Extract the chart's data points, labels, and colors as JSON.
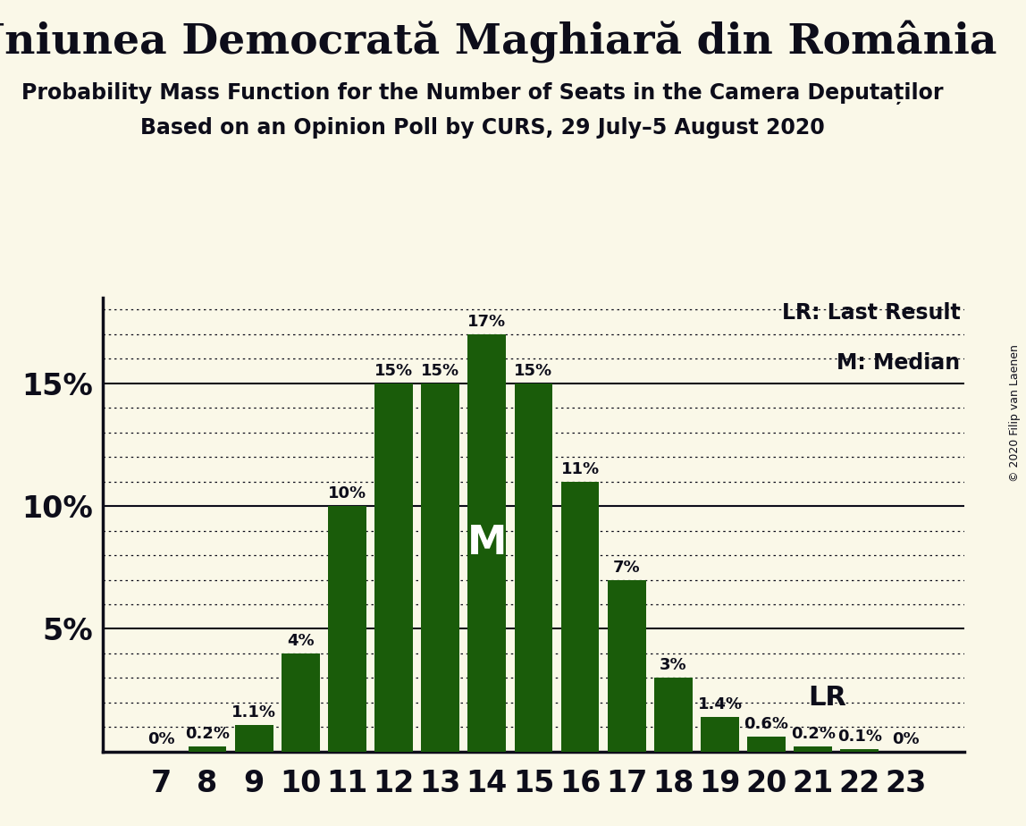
{
  "seats": [
    7,
    8,
    9,
    10,
    11,
    12,
    13,
    14,
    15,
    16,
    17,
    18,
    19,
    20,
    21,
    22,
    23
  ],
  "probabilities": [
    0.0,
    0.2,
    1.1,
    4.0,
    10.0,
    15.0,
    15.0,
    17.0,
    15.0,
    11.0,
    7.0,
    3.0,
    1.4,
    0.6,
    0.2,
    0.1,
    0.0
  ],
  "bar_color": "#1a5c0a",
  "background_color": "#faf8e8",
  "title": "Uniunea Democrată Maghiară din România",
  "subtitle1": "Probability Mass Function for the Number of Seats in the Camera Deputaților",
  "subtitle2": "Based on an Opinion Poll by CURS, 29 July–5 August 2020",
  "median_seat": 14,
  "lr_seat": 20,
  "ylim": [
    0,
    18.5
  ],
  "yticks_solid": [
    5,
    10,
    15
  ],
  "yticks_dotted": [
    1,
    2,
    3,
    4,
    6,
    7,
    8,
    9,
    11,
    12,
    13,
    14,
    16,
    17,
    18
  ],
  "yticks_labels": [
    5,
    10,
    15
  ],
  "axis_color": "#0d0d1a",
  "text_color": "#0d0d1a",
  "copyright_text": "© 2020 Filip van Laenen",
  "lr_legend": "LR: Last Result",
  "m_legend": "M: Median",
  "m_bar_label": "M",
  "lr_bar_label": "LR",
  "bar_labels": [
    "0%",
    "0.2%",
    "1.1%",
    "4%",
    "10%",
    "15%",
    "15%",
    "17%",
    "15%",
    "11%",
    "7%",
    "3%",
    "1.4%",
    "0.6%",
    "0.2%",
    "0.1%",
    "0%"
  ]
}
